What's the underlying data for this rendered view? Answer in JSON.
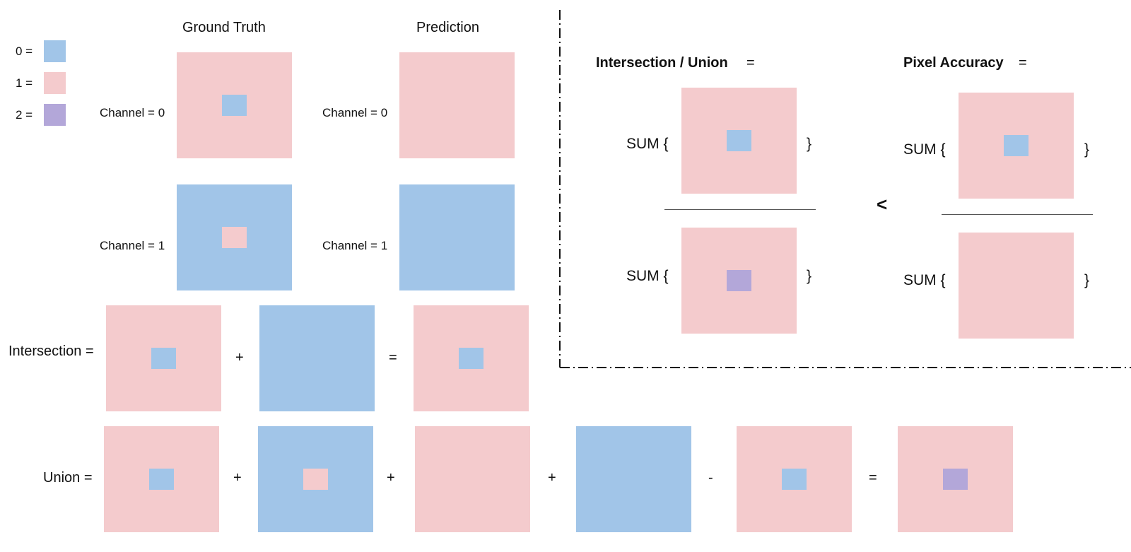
{
  "colors": {
    "class0": "#a1c5e8",
    "class1": "#f4cbcd",
    "class2": "#b3a7d9"
  },
  "legend": {
    "items": [
      {
        "label": "0 =",
        "class": "class0"
      },
      {
        "label": "1 =",
        "class": "class1"
      },
      {
        "label": "2 =",
        "class": "class2"
      }
    ]
  },
  "headers": {
    "ground_truth": "Ground Truth",
    "prediction": "Prediction"
  },
  "channels": {
    "gt_ch0": "Channel = 0",
    "pred_ch0": "Channel = 0",
    "gt_ch1": "Channel = 1",
    "pred_ch1": "Channel = 1"
  },
  "rows": {
    "intersection_label": "Intersection =",
    "union_label": "Union ="
  },
  "operators": {
    "plus": "+",
    "equals": "=",
    "minus": "-",
    "less_than": "<"
  },
  "metrics": {
    "iou_title": "Intersection / Union",
    "iou_equals": "=",
    "pa_title": "Pixel Accuracy",
    "pa_equals": "=",
    "sum_open": "SUM {",
    "sum_close": "}"
  },
  "tiles": {
    "gt_ch0": {
      "bg": "class1",
      "center": "class0"
    },
    "pred_ch0": {
      "bg": "class1",
      "center": null
    },
    "gt_ch1": {
      "bg": "class0",
      "center": "class1"
    },
    "pred_ch1": {
      "bg": "class0",
      "center": null
    },
    "int_a": {
      "bg": "class1",
      "center": "class0"
    },
    "int_b": {
      "bg": "class0",
      "center": null
    },
    "int_result": {
      "bg": "class1",
      "center": "class0"
    },
    "uni_a": {
      "bg": "class1",
      "center": "class0"
    },
    "uni_b": {
      "bg": "class0",
      "center": "class1"
    },
    "uni_c": {
      "bg": "class1",
      "center": null
    },
    "uni_d": {
      "bg": "class0",
      "center": null
    },
    "uni_e": {
      "bg": "class1",
      "center": "class0"
    },
    "uni_result": {
      "bg": "class1",
      "center": "class2"
    },
    "iou_num": {
      "bg": "class1",
      "center": "class0"
    },
    "iou_den": {
      "bg": "class1",
      "center": "class2"
    },
    "pa_num": {
      "bg": "class1",
      "center": "class0"
    },
    "pa_den": {
      "bg": "class1",
      "center": null
    }
  }
}
